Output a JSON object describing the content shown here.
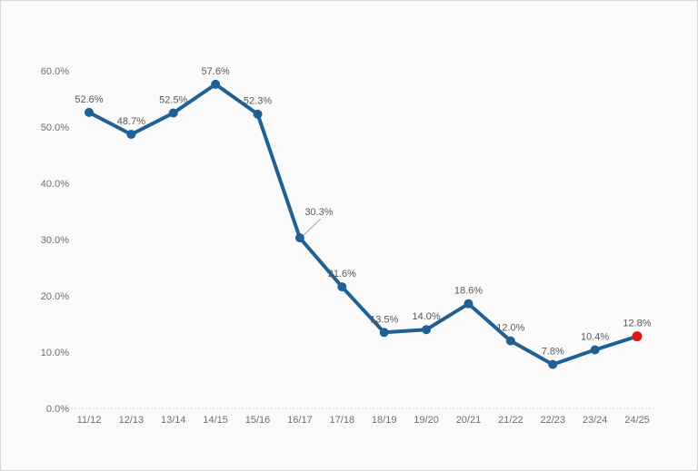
{
  "window": {
    "background_color": "#fafafa",
    "border_color": "#d8d8d8"
  },
  "chart_data": {
    "type": "line",
    "title": "",
    "xlabel": "",
    "ylabel": "",
    "categories": [
      "11/12",
      "12/13",
      "13/14",
      "14/15",
      "15/16",
      "16/17",
      "17/18",
      "18/19",
      "19/20",
      "20/21",
      "21/22",
      "22/23",
      "23/24",
      "24/25"
    ],
    "values": [
      52.6,
      48.7,
      52.5,
      57.6,
      52.3,
      30.3,
      21.6,
      13.5,
      14.0,
      18.6,
      12.0,
      7.8,
      10.4,
      12.8
    ],
    "point_labels": [
      "52.6%",
      "48.7%",
      "52.5%",
      "57.6%",
      "52.3%",
      "30.3%",
      "21.6%",
      "13.5%",
      "14.0%",
      "18.6%",
      "12.0%",
      "7.8%",
      "10.4%",
      "12.8%"
    ],
    "ylim": [
      0,
      60
    ],
    "ytick_values": [
      0,
      10,
      20,
      30,
      40,
      50,
      60
    ],
    "ytick_labels": [
      "0.0%",
      "10.0%",
      "20.0%",
      "30.0%",
      "40.0%",
      "50.0%",
      "60.0%"
    ],
    "grid": false,
    "legend": "none",
    "baseline_at_zero_style": "dotted",
    "line_color": "#206095",
    "marker_color": "#206095",
    "highlight_point": {
      "category": "24/25",
      "index": 13,
      "value": 12.8,
      "color": "#e01414"
    },
    "callout_label": {
      "category": "16/17",
      "index": 5,
      "text": "30.3%",
      "has_leader_line": true,
      "leader_line_color": "#a6a6a6"
    },
    "point_label_color": "#595959",
    "axis_label_color": "#6f6f6f",
    "baseline_color": "#cccccc"
  }
}
